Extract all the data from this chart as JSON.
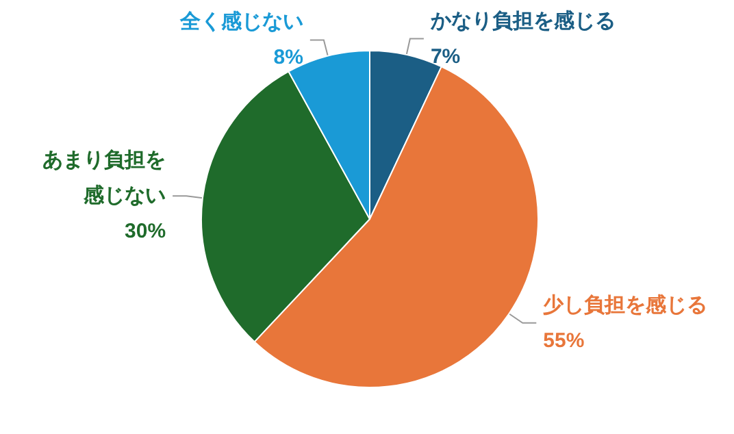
{
  "chart_data": {
    "type": "pie",
    "categories": [
      "かなり負担を感じる",
      "少し負担を感じる",
      "あまり負担を感じない",
      "全く感じない"
    ],
    "values": [
      7,
      55,
      30,
      8
    ],
    "value_labels": [
      "7%",
      "55%",
      "30%",
      "8%"
    ],
    "colors": [
      "#1b5e85",
      "#e8763a",
      "#1f6b2b",
      "#1a9ad6"
    ],
    "legend": false
  }
}
